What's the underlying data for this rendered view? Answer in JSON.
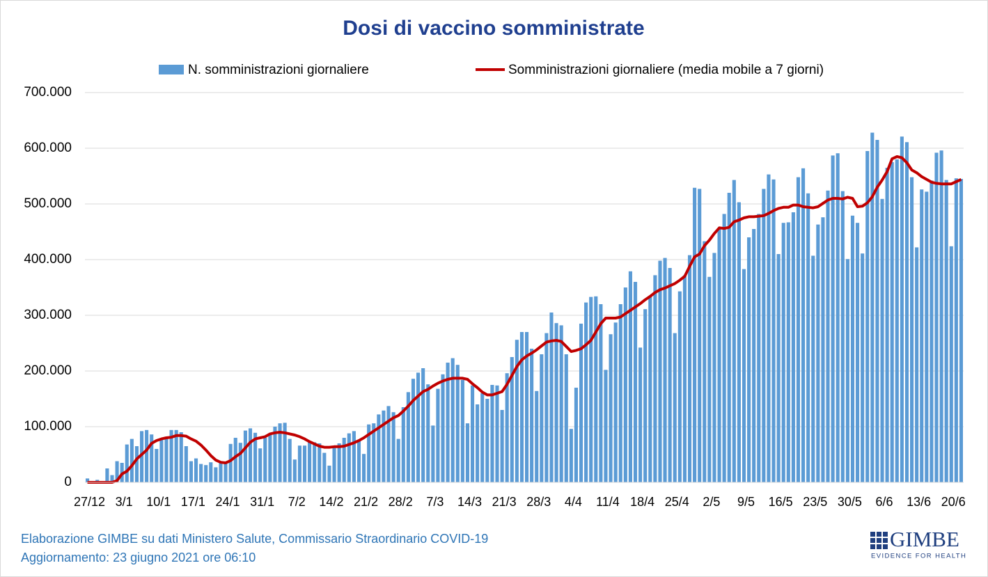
{
  "chart_data": {
    "type": "bar",
    "title": "Dosi di vaccino somministrate",
    "categories": [
      "27/12",
      null,
      null,
      null,
      null,
      null,
      null,
      "3/1",
      null,
      null,
      null,
      null,
      null,
      null,
      "10/1",
      null,
      null,
      null,
      null,
      null,
      null,
      "17/1",
      null,
      null,
      null,
      null,
      null,
      null,
      "24/1",
      null,
      null,
      null,
      null,
      null,
      null,
      "31/1",
      null,
      null,
      null,
      null,
      null,
      null,
      "7/2",
      null,
      null,
      null,
      null,
      null,
      null,
      "14/2",
      null,
      null,
      null,
      null,
      null,
      null,
      "21/2",
      null,
      null,
      null,
      null,
      null,
      null,
      "28/2",
      null,
      null,
      null,
      null,
      null,
      null,
      "7/3",
      null,
      null,
      null,
      null,
      null,
      null,
      "14/3",
      null,
      null,
      null,
      null,
      null,
      null,
      "21/3",
      null,
      null,
      null,
      null,
      null,
      null,
      "28/3",
      null,
      null,
      null,
      null,
      null,
      null,
      "4/4",
      null,
      null,
      null,
      null,
      null,
      null,
      "11/4",
      null,
      null,
      null,
      null,
      null,
      null,
      "18/4",
      null,
      null,
      null,
      null,
      null,
      null,
      "25/4",
      null,
      null,
      null,
      null,
      null,
      null,
      "2/5",
      null,
      null,
      null,
      null,
      null,
      null,
      "9/5",
      null,
      null,
      null,
      null,
      null,
      null,
      "16/5",
      null,
      null,
      null,
      null,
      null,
      null,
      "23/5",
      null,
      null,
      null,
      null,
      null,
      null,
      "30/5",
      null,
      null,
      null,
      null,
      null,
      null,
      "6/6",
      null,
      null,
      null,
      null,
      null,
      null,
      "13/6",
      null,
      null,
      null,
      null,
      null,
      null,
      "20/6",
      null,
      null
    ],
    "series": [
      {
        "name": "N. somministrazioni giornaliere",
        "type": "bar",
        "color": "#5b9bd5",
        "values": [
          7000,
          2500,
          4500,
          2000,
          25000,
          13000,
          38000,
          35000,
          68000,
          78000,
          65000,
          92000,
          94000,
          86000,
          60000,
          78000,
          82000,
          94000,
          94000,
          90000,
          65000,
          38000,
          43000,
          33000,
          31000,
          36000,
          27000,
          36000,
          35000,
          69000,
          80000,
          71000,
          93000,
          97000,
          89000,
          61000,
          80000,
          88000,
          100000,
          106000,
          107000,
          78000,
          41000,
          66000,
          66000,
          72000,
          72000,
          70000,
          53000,
          30000,
          62000,
          70000,
          80000,
          88000,
          92000,
          76000,
          51000,
          104000,
          106000,
          122000,
          129000,
          137000,
          126000,
          78000,
          135000,
          162000,
          186000,
          197000,
          205000,
          176000,
          102000,
          168000,
          194000,
          215000,
          223000,
          211000,
          184000,
          106000,
          174000,
          140000,
          160000,
          150000,
          175000,
          174000,
          130000,
          196000,
          225000,
          256000,
          270000,
          270000,
          240000,
          164000,
          230000,
          268000,
          305000,
          286000,
          282000,
          230000,
          96000,
          170000,
          285000,
          323000,
          333000,
          334000,
          320000,
          202000,
          266000,
          287000,
          320000,
          350000,
          379000,
          360000,
          242000,
          311000,
          333000,
          372000,
          398000,
          403000,
          385000,
          268000,
          343000,
          372000,
          408000,
          529000,
          527000,
          433000,
          369000,
          412000,
          457000,
          482000,
          520000,
          543000,
          503000,
          383000,
          440000,
          455000,
          482000,
          527000,
          553000,
          544000,
          410000,
          466000,
          467000,
          485000,
          548000,
          564000,
          519000,
          407000,
          463000,
          476000,
          524000,
          587000,
          591000,
          523000,
          401000,
          479000,
          466000,
          411000,
          595000,
          628000,
          615000,
          509000,
          565000,
          575000,
          580000,
          621000,
          611000,
          548000,
          422000,
          526000,
          522000,
          542000,
          592000,
          596000,
          543000,
          424000,
          546000,
          545000
        ]
      },
      {
        "name": "Somministrazioni giornaliere (media mobile a 7 giorni)",
        "type": "line",
        "color": "#c00000",
        "values": [
          0,
          0,
          0,
          0,
          0,
          0,
          3000,
          15000,
          20000,
          30000,
          42000,
          50000,
          58000,
          70000,
          75000,
          78000,
          80000,
          81000,
          84000,
          84000,
          83000,
          78000,
          74000,
          67000,
          58000,
          48000,
          40000,
          36000,
          35000,
          39000,
          46000,
          52000,
          62000,
          72000,
          78000,
          80000,
          82000,
          87000,
          89000,
          90000,
          89000,
          87000,
          85000,
          82000,
          78000,
          73000,
          69000,
          65000,
          63000,
          63000,
          64000,
          64000,
          65000,
          68000,
          71000,
          75000,
          80000,
          86000,
          92000,
          98000,
          104000,
          110000,
          116000,
          120000,
          128000,
          137000,
          147000,
          155000,
          163000,
          167000,
          173000,
          178000,
          182000,
          185000,
          187000,
          187000,
          187000,
          185000,
          177000,
          170000,
          162000,
          157000,
          157000,
          160000,
          163000,
          176000,
          192000,
          208000,
          220000,
          227000,
          232000,
          238000,
          245000,
          252000,
          254000,
          255000,
          253000,
          244000,
          235000,
          237000,
          240000,
          247000,
          255000,
          270000,
          285000,
          295000,
          295000,
          295000,
          297000,
          303000,
          309000,
          315000,
          321000,
          328000,
          334000,
          341000,
          346000,
          349000,
          353000,
          357000,
          363000,
          370000,
          388000,
          405000,
          410000,
          425000,
          435000,
          447000,
          457000,
          456000,
          458000,
          468000,
          471000,
          475000,
          477000,
          477000,
          478000,
          479000,
          483000,
          488000,
          492000,
          494000,
          494000,
          498000,
          498000,
          495000,
          494000,
          493000,
          495000,
          501000,
          507000,
          510000,
          510000,
          509000,
          512000,
          510000,
          495000,
          496000,
          502000,
          513000,
          530000,
          543000,
          558000,
          581000,
          585000,
          583000,
          574000,
          561000,
          556000,
          549000,
          544000,
          539000,
          537000,
          536000,
          536000,
          536000,
          540000,
          544000
        ]
      }
    ],
    "ylim": [
      0,
      700000
    ],
    "yticks": [
      0,
      {
        "value": 100000,
        "label": "100.000"
      },
      {
        "value": 200000,
        "label": "200.000"
      },
      {
        "value": 300000,
        "label": "300.000"
      },
      {
        "value": 400000,
        "label": "400.000"
      },
      {
        "value": 500000,
        "label": "500.000"
      },
      {
        "value": 600000,
        "label": "600.000"
      },
      {
        "value": 700000,
        "label": "700.000"
      }
    ],
    "grid": true,
    "legend": "top"
  },
  "footer": {
    "source": "Elaborazione GIMBE su dati Ministero Salute, Commissario Straordinario COVID-19",
    "updated": "Aggiornamento: 23 giugno 2021 ore 06:10"
  },
  "logo": {
    "name": "GIMBE",
    "tagline": "EVIDENCE FOR HEALTH"
  }
}
